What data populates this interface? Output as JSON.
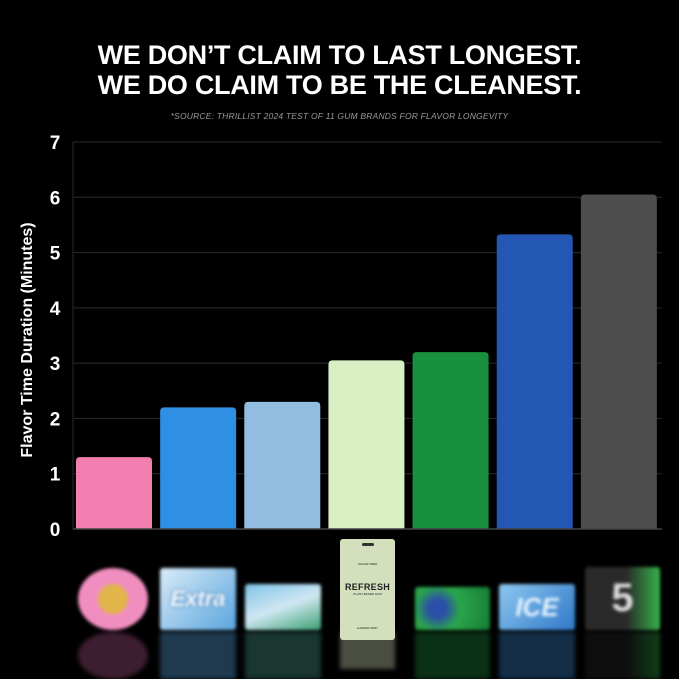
{
  "header": {
    "title_line1": "WE DON’T CLAIM TO LAST LONGEST.",
    "title_line2": "WE DO CLAIM TO BE THE CLEANEST.",
    "source": "*SOURCE: THRILLIST 2024 TEST OF 11 GUM BRANDS FOR FLAVOR LONGEVITY"
  },
  "chart_data": {
    "type": "bar",
    "title": "WE DON’T CLAIM TO LAST LONGEST. WE DO CLAIM TO BE THE CLEANEST.",
    "ylabel": "Flavor Time Duration (Minutes)",
    "xlabel": "",
    "ylim": [
      0,
      7
    ],
    "yticks": [
      "0",
      "1",
      "2",
      "3",
      "4",
      "5",
      "6",
      "7"
    ],
    "grid": true,
    "categories_shown_as": "product images",
    "values": [
      1.3,
      2.2,
      2.3,
      3.05,
      3.2,
      5.33,
      6.05
    ],
    "colors": [
      "#f27fb0",
      "#2f8fe4",
      "#92bde0",
      "#d9efc4",
      "#17913f",
      "#2457b4",
      "#4d4d4d"
    ]
  },
  "products": {
    "extra": "Extra",
    "refresh": "REFRESH",
    "refresh_sub": "PLANT-BASED GUM",
    "refresh_top": "SUGAR FREE",
    "refresh_flavor": "GARDEN MINT",
    "ice": "ICE",
    "five": "5"
  }
}
